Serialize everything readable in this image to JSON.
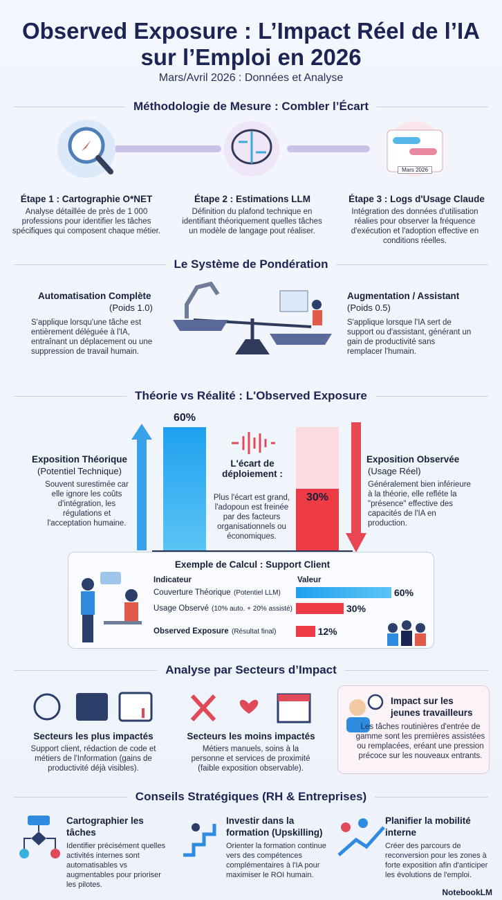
{
  "header": {
    "title": "Observed Exposure : L’Impact Réel de l’IA sur l’Emploi en 2026",
    "subtitle": "Mars/Avril 2026 : Données et Analyse"
  },
  "methodology": {
    "heading": "Méthodologie de Mesure : Combler l’Écart",
    "steps": [
      {
        "title": "Étape 1 : Cartographie O*NET",
        "text": "Analyse détaillée de près de 1 000 professions pour identifier les tâches spécifiques qui composent chaque métier."
      },
      {
        "title": "Étape 2 : Estimations LLM",
        "text": "Définition du plafond technique en identifiant théoriquement quelles tâches un modèle de langage pout réaliser."
      },
      {
        "title": "Étape 3 : Logs d'Usage Claude",
        "text": "Intégration des données d'utilisation réalies pour observer la fréquence d'exécution et l'adoption effective en conditions réelles.",
        "badge": "Mars 2026"
      }
    ]
  },
  "weighting": {
    "heading": "Le Système de Pondération",
    "items": [
      {
        "title": "Automatisation Complète",
        "weight": "(Poids 1.0)",
        "text": "S'applique lorsqu'une tâche est entièrement déléguée à l'IA, entraînant un déplacement ou une suppression de travail humain."
      },
      {
        "title": "Augmentation / Assistant",
        "weight": "(Poids 0.5)",
        "text": "S'applique lorsque l'IA sert de support ou d'assistant, générant un gain de productivité sans remplacer l'humain."
      }
    ]
  },
  "theory": {
    "heading": "Théorie vs Réalité : L'Observed Exposure",
    "theoretical": {
      "title": "Exposition Théorique",
      "subtitle": "(Potentiel Technique)",
      "text": "Souvent surestimée car elle ignore les coûts d'intégration, les régulations et l'acceptation humaine.",
      "value": 60,
      "value_label": "60%"
    },
    "gap": {
      "title": "L'écart de déploiement :",
      "text": "Plus l'écart est grand, l'adopoun est freinée par des facteurs organisationnels ou économiques."
    },
    "observed": {
      "title": "Exposition Observée",
      "subtitle": "(Usage Réel)",
      "text": "Généralement bien inférieure à la théorie, elle refléte la \"présence\" effective des capacités de l'IA en production.",
      "value": 30,
      "value_label": "30%"
    }
  },
  "example": {
    "title": "Exemple de Calcul : Support Client",
    "columns": [
      "Indicateur",
      "Valeur"
    ],
    "rows": [
      {
        "label": "Couverture Théorique",
        "note": "(Potentiel LLM)",
        "value": 60,
        "value_label": "60%"
      },
      {
        "label": "Usage Observé",
        "note": "(10% auto. + 20% assisté)",
        "value": 30,
        "value_label": "30%"
      },
      {
        "label": "Observed Exposure",
        "note": "(Résultat final)",
        "value": 12,
        "value_label": "12%"
      }
    ]
  },
  "sectors": {
    "heading": "Analyse par Secteurs d’Impact",
    "items": [
      {
        "title": "Secteurs les plus impactés",
        "text": "Support client, rédaction de code et métiers de l'Information (gains de productivité déjà visibles)."
      },
      {
        "title": "Secteurs les moins impactés",
        "text": "Métiers manuels, soins à la personne et services de proximité (faible exposition observable)."
      }
    ],
    "youth": {
      "title": "Impact sur les jeunes travailleurs",
      "text": "Les tâches routinières d'entrée de gamme sont les premières assistées ou remplacées, eréant une pression précoce sur les nouveaux entrants."
    }
  },
  "advice": {
    "heading": "Conseils Stratégiques (RH & Entreprises)",
    "items": [
      {
        "title": "Cartographier les tâches",
        "text": "Identifier précisément quelles activités internes sont automatisables vs augmentables pour prioriser les pilotes."
      },
      {
        "title": "Investir dans la formation (Upskilling)",
        "text": "Orienter la formation continue vers des compétences complémentaires à l'IA pour maximiser le ROI humain."
      },
      {
        "title": "Planifier la mobilité interne",
        "text": "Créer des parcours de reconversion pour les zones à forte exposition afin d'anticiper les évolutions de l'emploi."
      }
    ]
  },
  "footer": {
    "brand": "NotebookLM"
  }
}
